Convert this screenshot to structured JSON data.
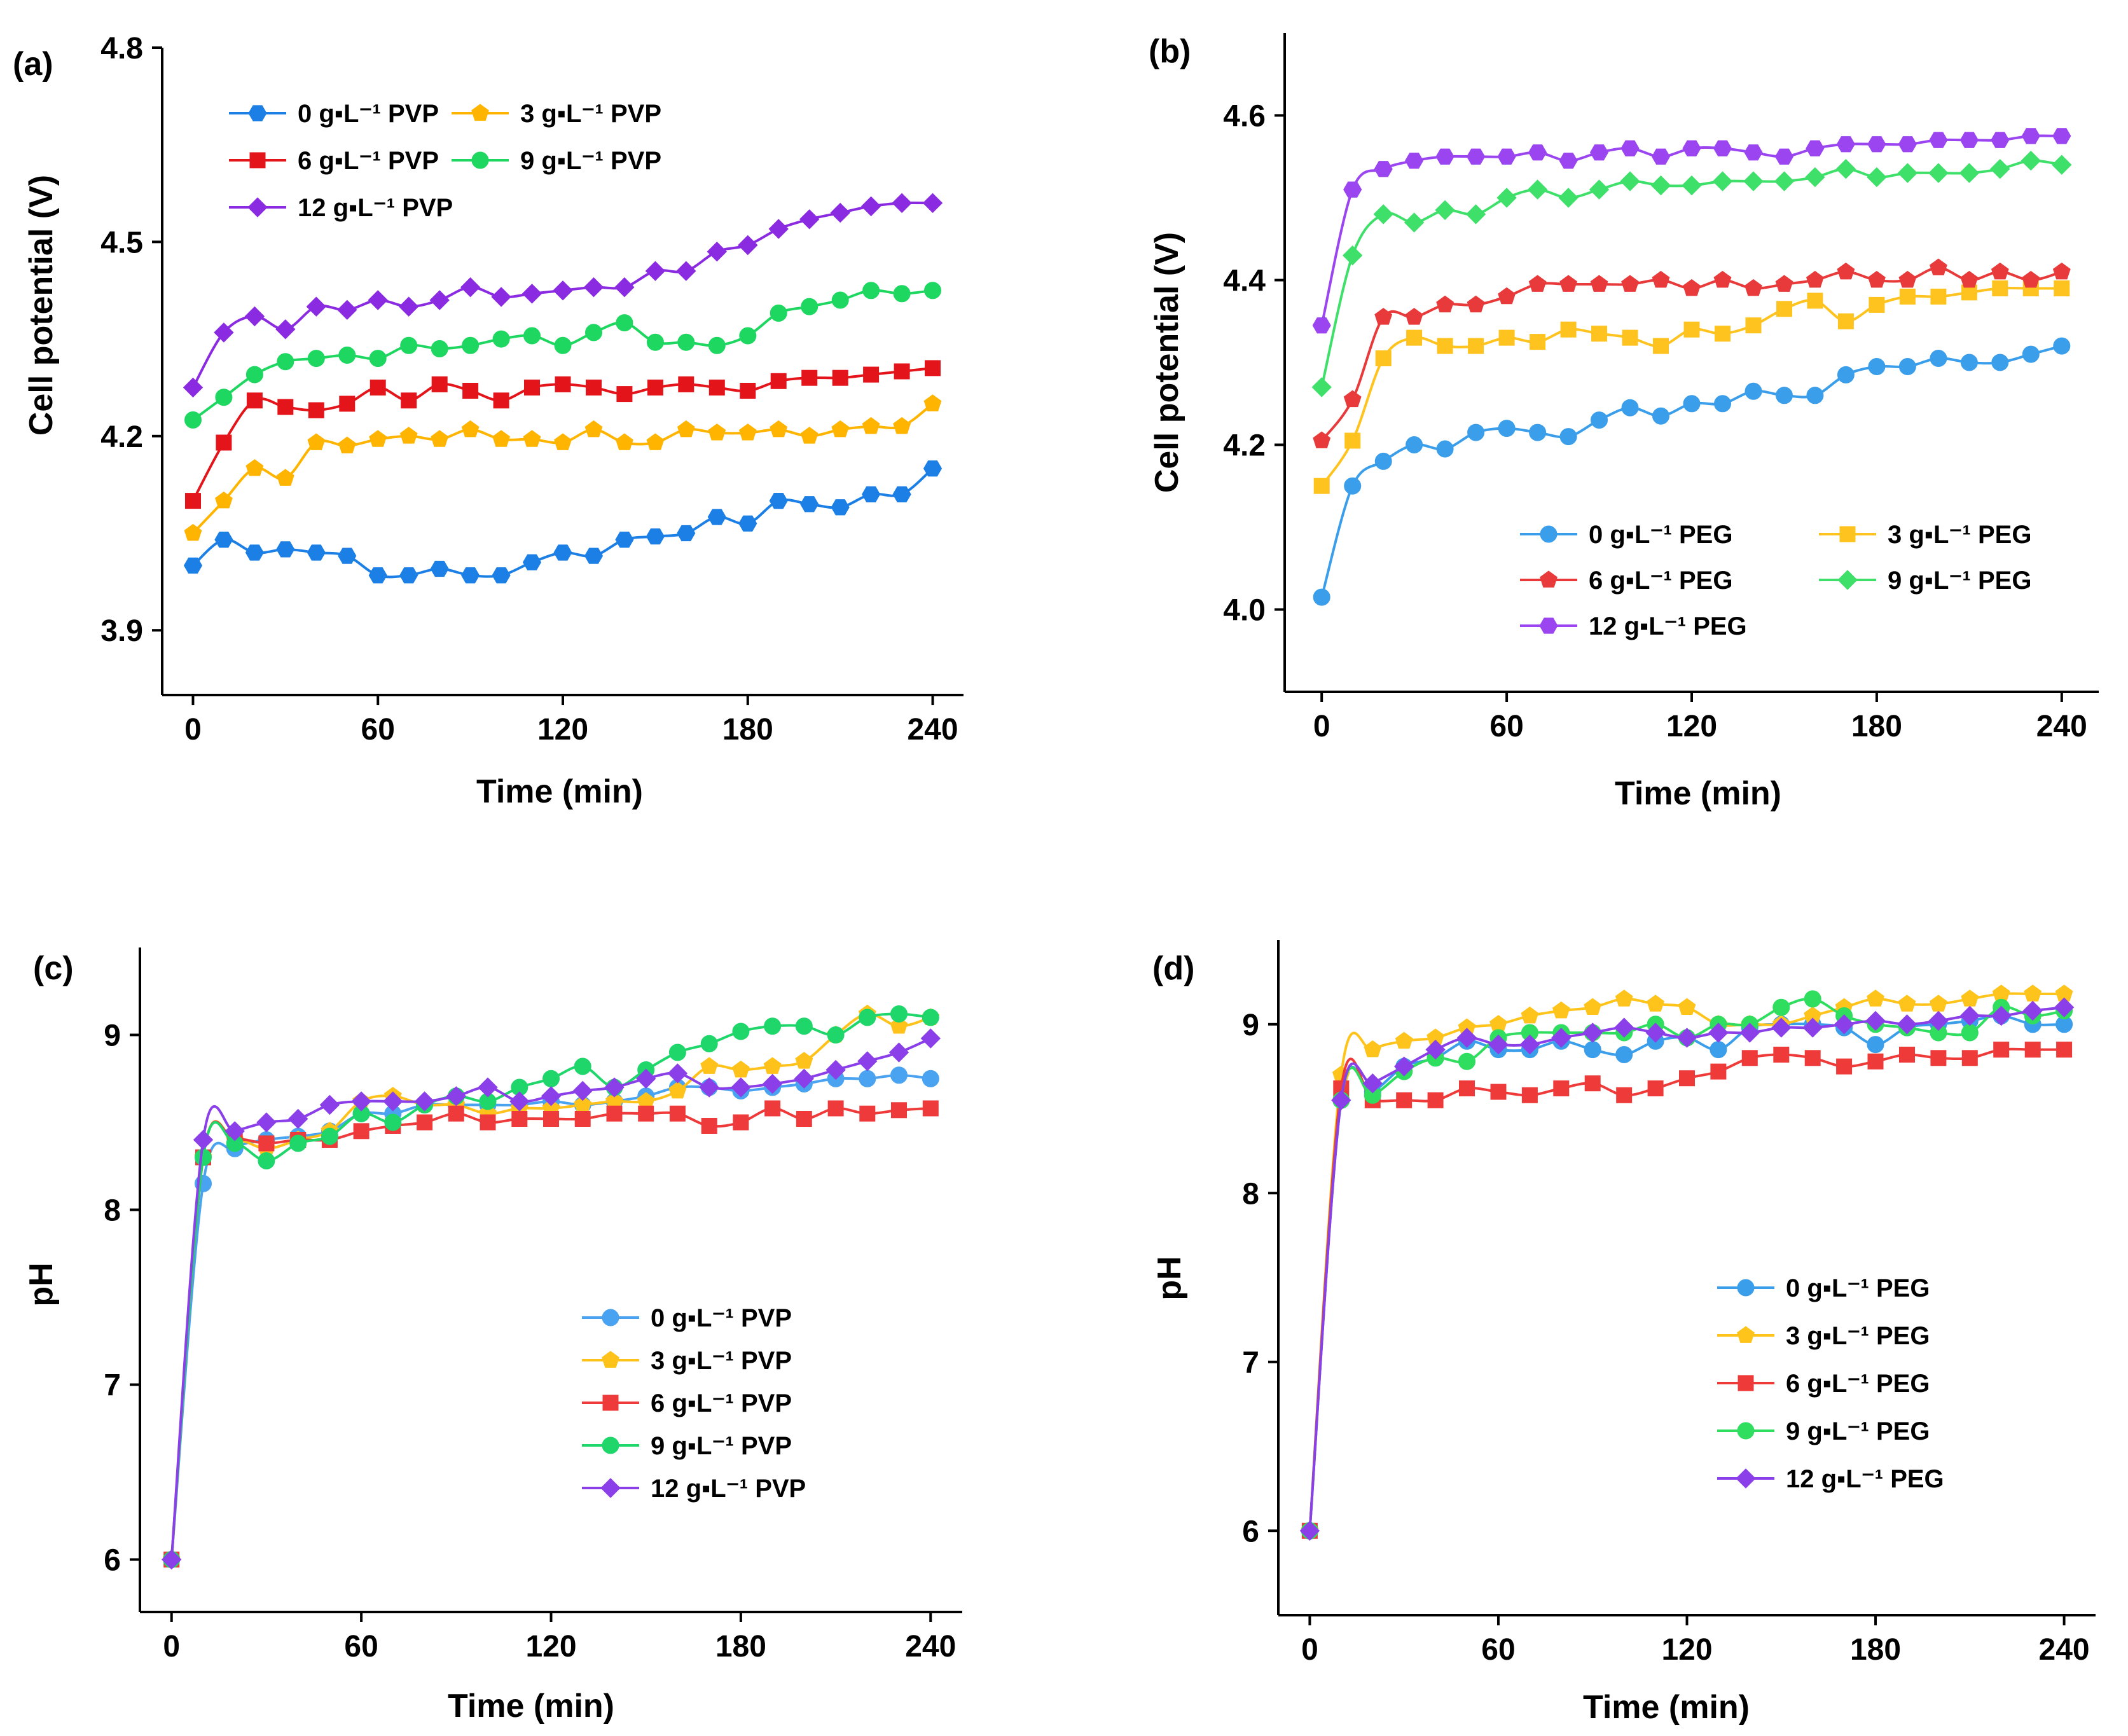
{
  "chart_data": [
    {
      "panel": "(a)",
      "type": "line",
      "xlabel": "Time (min)",
      "ylabel": "Cell potential (V)",
      "xlim": [
        -10,
        250
      ],
      "ylim": [
        3.8,
        4.8
      ],
      "xticks": [
        0,
        60,
        120,
        180,
        240
      ],
      "yticks": [
        3.9,
        4.2,
        4.5,
        4.8
      ],
      "legend_position": "top-left",
      "legend_columns": 2,
      "x": [
        0,
        10,
        20,
        30,
        40,
        50,
        60,
        70,
        80,
        90,
        100,
        110,
        120,
        130,
        140,
        150,
        160,
        170,
        180,
        190,
        200,
        210,
        220,
        230,
        240
      ],
      "series": [
        {
          "name": "0 g▪L⁻¹ PVP",
          "color": "#1b7fe6",
          "marker": "hexagon",
          "values": [
            4.0,
            4.04,
            4.02,
            4.025,
            4.02,
            4.015,
            3.985,
            3.985,
            3.995,
            3.985,
            3.985,
            4.005,
            4.02,
            4.015,
            4.04,
            4.045,
            4.05,
            4.075,
            4.065,
            4.1,
            4.095,
            4.09,
            4.11,
            4.11,
            4.15
          ]
        },
        {
          "name": "3 g▪L⁻¹ PVP",
          "color": "#ffb400",
          "marker": "pentagon",
          "values": [
            4.05,
            4.1,
            4.15,
            4.135,
            4.19,
            4.185,
            4.195,
            4.2,
            4.195,
            4.21,
            4.195,
            4.195,
            4.19,
            4.21,
            4.19,
            4.19,
            4.21,
            4.205,
            4.205,
            4.21,
            4.2,
            4.21,
            4.215,
            4.215,
            4.25
          ]
        },
        {
          "name": "6 g▪L⁻¹ PVP",
          "color": "#e4141b",
          "marker": "square",
          "values": [
            4.1,
            4.19,
            4.255,
            4.245,
            4.24,
            4.25,
            4.275,
            4.255,
            4.28,
            4.27,
            4.255,
            4.275,
            4.28,
            4.275,
            4.265,
            4.275,
            4.28,
            4.275,
            4.27,
            4.285,
            4.29,
            4.29,
            4.295,
            4.3,
            4.305
          ]
        },
        {
          "name": "9 g▪L⁻¹ PVP",
          "color": "#1ed760",
          "marker": "circle",
          "values": [
            4.225,
            4.26,
            4.295,
            4.315,
            4.32,
            4.325,
            4.32,
            4.34,
            4.335,
            4.34,
            4.35,
            4.355,
            4.34,
            4.36,
            4.375,
            4.345,
            4.345,
            4.34,
            4.355,
            4.39,
            4.4,
            4.41,
            4.425,
            4.42,
            4.425
          ]
        },
        {
          "name": "12 g▪L⁻¹ PVP",
          "color": "#8a2be2",
          "marker": "diamond",
          "values": [
            4.275,
            4.36,
            4.385,
            4.365,
            4.4,
            4.395,
            4.41,
            4.4,
            4.41,
            4.43,
            4.415,
            4.42,
            4.425,
            4.43,
            4.43,
            4.455,
            4.455,
            4.485,
            4.495,
            4.52,
            4.535,
            4.545,
            4.555,
            4.56,
            4.56
          ]
        }
      ]
    },
    {
      "panel": "(b)",
      "type": "line",
      "xlabel": "Time (min)",
      "ylabel": "Cell potential (V)",
      "xlim": [
        -12,
        252
      ],
      "ylim": [
        3.9,
        4.7
      ],
      "xticks": [
        0,
        60,
        120,
        180,
        240
      ],
      "yticks": [
        4.0,
        4.2,
        4.4,
        4.6
      ],
      "legend_position": "bottom-right",
      "legend_columns": 2,
      "x": [
        0,
        10,
        20,
        30,
        40,
        50,
        60,
        70,
        80,
        90,
        100,
        110,
        120,
        130,
        140,
        150,
        160,
        170,
        180,
        190,
        200,
        210,
        220,
        230,
        240
      ],
      "series": [
        {
          "name": "0 g▪L⁻¹ PEG",
          "color": "#3b9eea",
          "marker": "circle",
          "values": [
            4.015,
            4.15,
            4.18,
            4.2,
            4.195,
            4.215,
            4.22,
            4.215,
            4.21,
            4.23,
            4.245,
            4.235,
            4.25,
            4.25,
            4.265,
            4.26,
            4.26,
            4.285,
            4.295,
            4.295,
            4.305,
            4.3,
            4.3,
            4.31,
            4.32
          ]
        },
        {
          "name": "3 g▪L⁻¹ PEG",
          "color": "#ffc31f",
          "marker": "square",
          "values": [
            4.15,
            4.205,
            4.305,
            4.33,
            4.32,
            4.32,
            4.33,
            4.325,
            4.34,
            4.335,
            4.33,
            4.32,
            4.34,
            4.335,
            4.345,
            4.365,
            4.375,
            4.35,
            4.37,
            4.38,
            4.38,
            4.385,
            4.39,
            4.39,
            4.39
          ]
        },
        {
          "name": "6 g▪L⁻¹ PEG",
          "color": "#e83a3a",
          "marker": "pentagon",
          "values": [
            4.205,
            4.255,
            4.355,
            4.355,
            4.37,
            4.37,
            4.38,
            4.395,
            4.395,
            4.395,
            4.395,
            4.4,
            4.39,
            4.4,
            4.39,
            4.395,
            4.4,
            4.41,
            4.4,
            4.4,
            4.415,
            4.4,
            4.41,
            4.4,
            4.41
          ]
        },
        {
          "name": "9 g▪L⁻¹ PEG",
          "color": "#3ee06a",
          "marker": "diamond",
          "values": [
            4.27,
            4.43,
            4.48,
            4.47,
            4.485,
            4.48,
            4.5,
            4.51,
            4.5,
            4.51,
            4.52,
            4.515,
            4.515,
            4.52,
            4.52,
            4.52,
            4.525,
            4.535,
            4.525,
            4.53,
            4.53,
            4.53,
            4.535,
            4.545,
            4.54
          ]
        },
        {
          "name": "12 g▪L⁻¹ PEG",
          "color": "#9b45f0",
          "marker": "hexagon",
          "values": [
            4.345,
            4.51,
            4.535,
            4.545,
            4.55,
            4.55,
            4.55,
            4.555,
            4.545,
            4.555,
            4.56,
            4.55,
            4.56,
            4.56,
            4.555,
            4.55,
            4.56,
            4.565,
            4.565,
            4.565,
            4.57,
            4.57,
            4.57,
            4.575,
            4.575
          ]
        }
      ]
    },
    {
      "panel": "(c)",
      "type": "line",
      "xlabel": "Time (min)",
      "ylabel": "pH",
      "xlim": [
        -10,
        250
      ],
      "ylim": [
        5.7,
        9.5
      ],
      "xticks": [
        0,
        60,
        120,
        180,
        240
      ],
      "yticks": [
        6,
        7,
        8,
        9
      ],
      "legend_position": "bottom-right",
      "legend_columns": 1,
      "x": [
        0,
        10,
        20,
        30,
        40,
        50,
        60,
        70,
        80,
        90,
        100,
        110,
        120,
        130,
        140,
        150,
        160,
        170,
        180,
        190,
        200,
        210,
        220,
        230,
        240
      ],
      "series": [
        {
          "name": "0 g▪L⁻¹  PVP",
          "color": "#4aa3f0",
          "marker": "circle",
          "values": [
            6.0,
            8.15,
            8.35,
            8.4,
            8.42,
            8.45,
            8.55,
            8.55,
            8.6,
            8.6,
            8.6,
            8.6,
            8.62,
            8.6,
            8.62,
            8.65,
            8.7,
            8.7,
            8.68,
            8.7,
            8.72,
            8.75,
            8.75,
            8.77,
            8.75
          ]
        },
        {
          "name": "3 g▪L⁻¹  PVP",
          "color": "#ffc21a",
          "marker": "pentagon",
          "values": [
            6.0,
            8.3,
            8.4,
            8.35,
            8.4,
            8.45,
            8.62,
            8.65,
            8.6,
            8.6,
            8.55,
            8.58,
            8.58,
            8.6,
            8.62,
            8.62,
            8.68,
            8.82,
            8.8,
            8.82,
            8.85,
            9.0,
            9.12,
            9.05,
            9.1
          ]
        },
        {
          "name": "6 g▪L⁻¹  PVP",
          "color": "#ee3a3a",
          "marker": "square",
          "values": [
            6.0,
            8.3,
            8.4,
            8.38,
            8.4,
            8.4,
            8.45,
            8.48,
            8.5,
            8.55,
            8.5,
            8.52,
            8.52,
            8.52,
            8.55,
            8.55,
            8.55,
            8.48,
            8.5,
            8.58,
            8.52,
            8.58,
            8.55,
            8.57,
            8.58
          ]
        },
        {
          "name": "9 g▪L⁻¹  PVP",
          "color": "#1ed66a",
          "marker": "circle",
          "values": [
            6.0,
            8.3,
            8.38,
            8.28,
            8.38,
            8.42,
            8.55,
            8.5,
            8.6,
            8.65,
            8.62,
            8.7,
            8.75,
            8.82,
            8.7,
            8.8,
            8.9,
            8.95,
            9.02,
            9.05,
            9.05,
            9.0,
            9.1,
            9.12,
            9.1
          ]
        },
        {
          "name": "12 g▪L⁻¹ PVP",
          "color": "#8a3fe8",
          "marker": "diamond",
          "values": [
            6.0,
            8.4,
            8.45,
            8.5,
            8.52,
            8.6,
            8.62,
            8.62,
            8.62,
            8.65,
            8.7,
            8.62,
            8.65,
            8.68,
            8.7,
            8.75,
            8.78,
            8.7,
            8.7,
            8.72,
            8.75,
            8.8,
            8.85,
            8.9,
            8.98
          ]
        }
      ]
    },
    {
      "panel": "(d)",
      "type": "line",
      "xlabel": "Time (min)",
      "ylabel": "pH",
      "xlim": [
        -10,
        250
      ],
      "ylim": [
        5.5,
        9.5
      ],
      "xticks": [
        0,
        60,
        120,
        180,
        240
      ],
      "yticks": [
        6,
        7,
        8,
        9
      ],
      "legend_position": "bottom-right",
      "legend_columns": 1,
      "x": [
        0,
        10,
        20,
        30,
        40,
        50,
        60,
        70,
        80,
        90,
        100,
        110,
        120,
        130,
        140,
        150,
        160,
        170,
        180,
        190,
        200,
        210,
        220,
        230,
        240
      ],
      "series": [
        {
          "name": "0 g▪L⁻¹ PEG",
          "color": "#3b9eea",
          "marker": "circle",
          "values": [
            6.0,
            8.55,
            8.6,
            8.75,
            8.8,
            8.9,
            8.85,
            8.85,
            8.9,
            8.85,
            8.82,
            8.9,
            8.92,
            8.85,
            8.98,
            9.0,
            9.0,
            8.98,
            8.88,
            8.98,
            9.0,
            9.02,
            9.05,
            9.0,
            9.0
          ]
        },
        {
          "name": "3 g▪L⁻¹ PEG",
          "color": "#ffc41c",
          "marker": "pentagon",
          "values": [
            6.0,
            8.7,
            8.85,
            8.9,
            8.92,
            8.98,
            9.0,
            9.05,
            9.08,
            9.1,
            9.15,
            9.12,
            9.1,
            9.0,
            9.0,
            9.0,
            9.05,
            9.1,
            9.15,
            9.12,
            9.12,
            9.15,
            9.18,
            9.18,
            9.18
          ]
        },
        {
          "name": "6 g▪L⁻¹ PEG",
          "color": "#ef3a3a",
          "marker": "square",
          "values": [
            6.0,
            8.62,
            8.55,
            8.55,
            8.55,
            8.62,
            8.6,
            8.58,
            8.62,
            8.65,
            8.58,
            8.62,
            8.68,
            8.72,
            8.8,
            8.82,
            8.8,
            8.75,
            8.78,
            8.82,
            8.8,
            8.8,
            8.85,
            8.85,
            8.85
          ]
        },
        {
          "name": "9 g▪L⁻¹ PEG",
          "color": "#2fdd5f",
          "marker": "circle",
          "values": [
            6.0,
            8.55,
            8.58,
            8.72,
            8.8,
            8.78,
            8.92,
            8.95,
            8.95,
            8.95,
            8.95,
            9.0,
            8.92,
            9.0,
            9.0,
            9.1,
            9.15,
            9.05,
            9.0,
            8.98,
            8.95,
            8.95,
            9.1,
            9.05,
            9.08
          ]
        },
        {
          "name": "12 g▪L⁻¹ PEG",
          "color": "#8a3fe8",
          "marker": "diamond",
          "values": [
            6.0,
            8.55,
            8.65,
            8.75,
            8.85,
            8.92,
            8.88,
            8.88,
            8.92,
            8.95,
            8.98,
            8.95,
            8.92,
            8.95,
            8.95,
            8.98,
            8.98,
            9.0,
            9.02,
            9.0,
            9.02,
            9.05,
            9.05,
            9.08,
            9.1
          ]
        }
      ]
    }
  ]
}
